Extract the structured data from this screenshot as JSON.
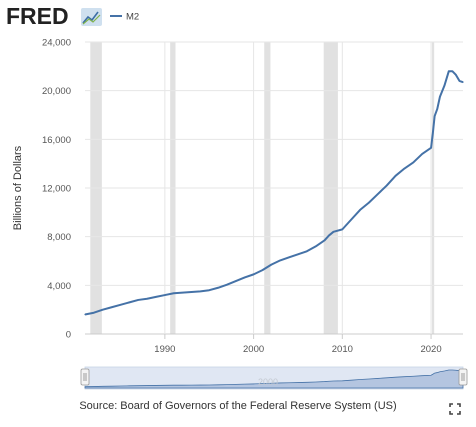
{
  "logo": {
    "text": "FRED"
  },
  "legend": {
    "series_label": "M2"
  },
  "source": {
    "text": "Source: Board of Governors of the Federal Reserve System (US)"
  },
  "icons": {
    "fullscreen": "fullscreen-icon",
    "logo_graph": "trend-graph-icon"
  },
  "colors": {
    "series": "#4572a7",
    "recession": "#e1e1e1",
    "grid": "#e6e6e6",
    "navigator_fill": "#c6d4ea",
    "logo_dark": "#222222",
    "logo_graph_bg": "#cfe0ef"
  },
  "navigator": {
    "label": "2000"
  },
  "chart_data": {
    "type": "line",
    "title": "",
    "xlabel": "",
    "ylabel": "Billions of Dollars",
    "ylim": [
      0,
      24000
    ],
    "xlim": [
      1981.0,
      2023.6
    ],
    "grid": true,
    "legend_placement": "top-left",
    "yticks": [
      0,
      4000,
      8000,
      12000,
      16000,
      20000,
      24000
    ],
    "ytick_labels": [
      "0",
      "4,000",
      "8,000",
      "12,000",
      "16,000",
      "20,000",
      "24,000"
    ],
    "xticks": [
      1990,
      2000,
      2010,
      2020
    ],
    "xtick_labels": [
      "1990",
      "2000",
      "2010",
      "2020"
    ],
    "recessions": [
      [
        1981.6,
        1982.9
      ],
      [
        1990.6,
        1991.2
      ],
      [
        2001.2,
        2001.9
      ],
      [
        2007.9,
        2009.5
      ],
      [
        2020.1,
        2020.35
      ]
    ],
    "series": [
      {
        "name": "M2",
        "x": [
          1981.0,
          1982.0,
          1983.0,
          1984.0,
          1985.0,
          1986.0,
          1987.0,
          1988.0,
          1989.0,
          1990.0,
          1991.0,
          1992.0,
          1993.0,
          1994.0,
          1995.0,
          1996.0,
          1997.0,
          1998.0,
          1999.0,
          2000.0,
          2001.0,
          2002.0,
          2003.0,
          2004.0,
          2005.0,
          2006.0,
          2007.0,
          2008.0,
          2008.5,
          2009.0,
          2010.0,
          2011.0,
          2012.0,
          2013.0,
          2014.0,
          2015.0,
          2016.0,
          2017.0,
          2018.0,
          2019.0,
          2020.0,
          2020.2,
          2020.4,
          2020.7,
          2021.0,
          2021.5,
          2022.0,
          2022.4,
          2022.8,
          2023.2,
          2023.6
        ],
        "values": [
          1600,
          1750,
          2000,
          2200,
          2400,
          2600,
          2800,
          2900,
          3050,
          3200,
          3350,
          3400,
          3450,
          3500,
          3600,
          3800,
          4050,
          4350,
          4650,
          4900,
          5250,
          5700,
          6050,
          6300,
          6550,
          6800,
          7200,
          7700,
          8100,
          8400,
          8600,
          9400,
          10200,
          10800,
          11500,
          12200,
          13000,
          13600,
          14100,
          14800,
          15300,
          16500,
          17900,
          18500,
          19500,
          20400,
          21600,
          21600,
          21300,
          20800,
          20700
        ]
      }
    ]
  }
}
